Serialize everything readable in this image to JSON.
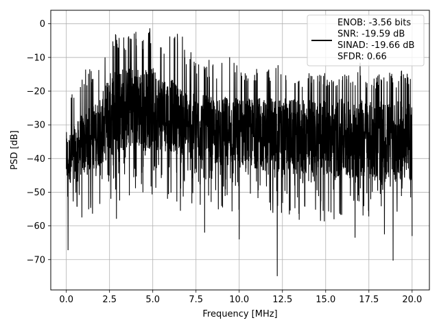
{
  "chart_data": {
    "type": "line",
    "xlabel": "Frequency [MHz]",
    "ylabel": "PSD [dB]",
    "xlim": [
      -0.9,
      21.0
    ],
    "ylim": [
      -79,
      4
    ],
    "xticks": [
      0.0,
      2.5,
      5.0,
      7.5,
      10.0,
      12.5,
      15.0,
      17.5,
      20.0
    ],
    "xtick_labels": [
      "0.0",
      "2.5",
      "5.0",
      "7.5",
      "10.0",
      "12.5",
      "15.0",
      "17.5",
      "20.0"
    ],
    "yticks": [
      0,
      -10,
      -20,
      -30,
      -40,
      -50,
      -60,
      -70
    ],
    "ytick_labels": [
      "0",
      "−10",
      "−20",
      "−30",
      "−40",
      "−50",
      "−60",
      "−70"
    ],
    "grid": true,
    "legend_position": "top-right",
    "series": [
      {
        "color": "#000000",
        "envelope": {
          "x": [
            0.0,
            0.1,
            0.5,
            1.0,
            1.5,
            2.0,
            2.5,
            3.0,
            3.5,
            4.0,
            4.5,
            5.0,
            5.5,
            6.0,
            6.5,
            7.0,
            7.5,
            8.0,
            8.5,
            9.0,
            9.5,
            10.0,
            10.5,
            11.0,
            11.5,
            12.0,
            12.5,
            13.0,
            13.5,
            14.0,
            14.5,
            15.0,
            15.5,
            16.0,
            16.5,
            17.0,
            17.5,
            18.0,
            18.5,
            19.0,
            19.5,
            20.0
          ],
          "upper": [
            -28,
            -21,
            -17,
            -14,
            -12,
            -9,
            -2,
            -3,
            -3,
            -2,
            -3,
            0,
            -3,
            -2,
            -2,
            -6,
            -10,
            -10,
            -11,
            -10,
            -9,
            -13,
            -14,
            -12,
            -15,
            -10,
            -14,
            -14,
            -16,
            -13,
            -15,
            -14,
            -16,
            -13,
            -16,
            -11,
            -17,
            -15,
            -11,
            -17,
            -13,
            -17
          ],
          "mid_top": [
            -32,
            -33,
            -30,
            -26,
            -24,
            -22,
            -14,
            -12,
            -13,
            -12,
            -13,
            -13,
            -15,
            -16,
            -18,
            -20,
            -21,
            -21,
            -22,
            -22,
            -21,
            -22,
            -22,
            -22,
            -22,
            -22,
            -22,
            -22,
            -23,
            -22,
            -22,
            -23,
            -23,
            -22,
            -23,
            -22,
            -23,
            -23,
            -23,
            -23,
            -23,
            -23
          ],
          "mid_bottom": [
            -48,
            -48,
            -46,
            -45,
            -44,
            -42,
            -40,
            -38,
            -38,
            -37,
            -38,
            -37,
            -38,
            -38,
            -39,
            -40,
            -41,
            -41,
            -42,
            -42,
            -42,
            -43,
            -43,
            -43,
            -44,
            -44,
            -44,
            -44,
            -45,
            -45,
            -45,
            -45,
            -46,
            -46,
            -46,
            -46,
            -46,
            -47,
            -47,
            -47,
            -47,
            -47
          ],
          "lower": [
            -55,
            -54,
            -55,
            -57,
            -57,
            -55,
            -54,
            -53,
            -52,
            -50,
            -52,
            -51,
            -52,
            -52,
            -53,
            -54,
            -56,
            -55,
            -56,
            -56,
            -57,
            -57,
            -56,
            -58,
            -57,
            -58,
            -58,
            -57,
            -59,
            -58,
            -57,
            -59,
            -59,
            -58,
            -60,
            -58,
            -58,
            -60,
            -60,
            -60,
            -59,
            -60
          ],
          "dips": [
            [
              0.1,
              -67.2
            ],
            [
              0.9,
              -57.5
            ],
            [
              2.9,
              -57.9
            ],
            [
              6.6,
              -55.5
            ],
            [
              8.0,
              -62.0
            ],
            [
              10.0,
              -64.0
            ],
            [
              12.2,
              -74.9
            ],
            [
              14.7,
              -58.5
            ],
            [
              16.7,
              -63.5
            ],
            [
              18.4,
              -62.5
            ],
            [
              18.9,
              -70.3
            ],
            [
              20.0,
              -63.0
            ]
          ]
        }
      }
    ],
    "legend": {
      "lines": [
        "ENOB: -3.56 bits",
        "SNR: -19.59 dB",
        "SINAD: -19.66 dB",
        "SFDR: 0.66"
      ]
    }
  }
}
